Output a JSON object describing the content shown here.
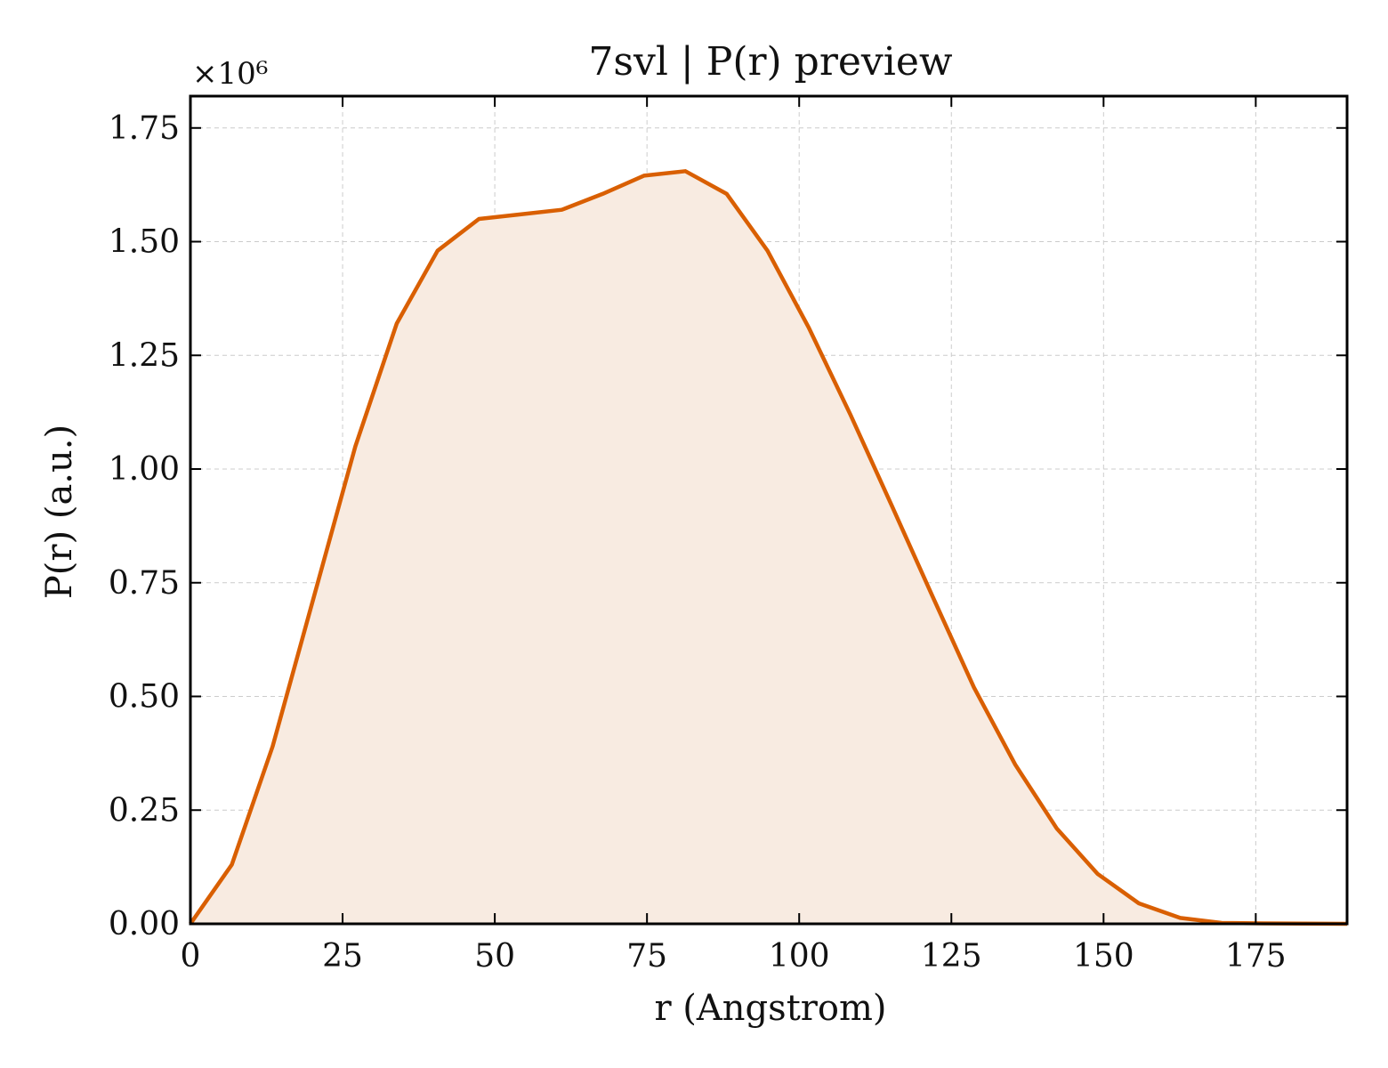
{
  "colors": {
    "line": "#d95f02",
    "fill": "#f8ebe1",
    "grid": "#cccccc",
    "axes": "#000000"
  },
  "chart_data": {
    "type": "area",
    "title": "7svl | P(r) preview",
    "xlabel": "r (Angstrom)",
    "ylabel": "P(r) (a.u.)",
    "y_multiplier_label": "×10⁶",
    "y_multiplier": 1000000,
    "xlim": [
      0,
      190
    ],
    "ylim": [
      0,
      1.82
    ],
    "x_ticks": [
      0,
      25,
      50,
      75,
      100,
      125,
      150,
      175
    ],
    "x_tick_labels": [
      "0",
      "25",
      "50",
      "75",
      "100",
      "125",
      "150",
      "175"
    ],
    "y_ticks": [
      0,
      0.25,
      0.5,
      0.75,
      1.0,
      1.25,
      1.5,
      1.75
    ],
    "y_tick_labels": [
      "0.00",
      "0.25",
      "0.50",
      "0.75",
      "1.00",
      "1.25",
      "1.50",
      "1.75"
    ],
    "grid": true,
    "series": [
      {
        "x": [
          0,
          6.8,
          13.5,
          20.3,
          27.1,
          33.9,
          40.6,
          47.4,
          54.2,
          61.0,
          67.7,
          74.5,
          81.3,
          88.1,
          94.8,
          101.6,
          108.4,
          115.2,
          121.9,
          128.7,
          135.5,
          142.3,
          149.0,
          155.8,
          162.6,
          169.4,
          176.1,
          182.9,
          190.0
        ],
        "y": [
          0.0,
          0.13,
          0.39,
          0.72,
          1.05,
          1.32,
          1.48,
          1.55,
          1.56,
          1.57,
          1.605,
          1.645,
          1.655,
          1.605,
          1.48,
          1.31,
          1.12,
          0.92,
          0.72,
          0.52,
          0.35,
          0.21,
          0.11,
          0.045,
          0.013,
          0.002,
          0.001,
          0.0005,
          0.0
        ]
      }
    ]
  }
}
